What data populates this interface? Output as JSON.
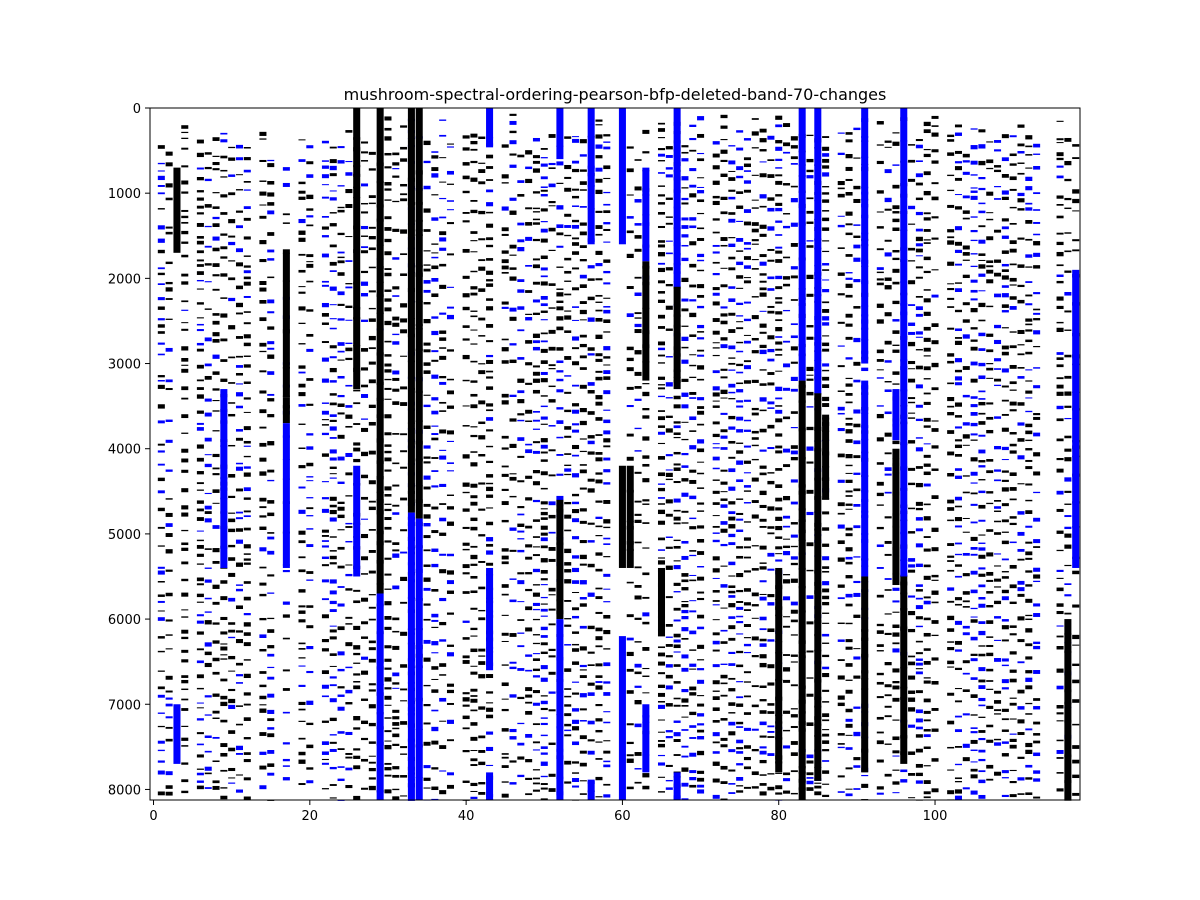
{
  "chart_data": {
    "type": "heatmap",
    "title": "mushroom-spectral-ordering-pearson-bfp-deleted-band-70-changes",
    "xlabel": "",
    "ylabel": "",
    "x_range": [
      0,
      119
    ],
    "y_range": [
      0,
      8124
    ],
    "y_inverted": true,
    "x_ticks": [
      0,
      20,
      40,
      60,
      80,
      100
    ],
    "y_ticks": [
      0,
      1000,
      2000,
      3000,
      4000,
      5000,
      6000,
      7000,
      8000
    ],
    "x_tick_labels": [
      "0",
      "20",
      "40",
      "60",
      "80",
      "100"
    ],
    "y_tick_labels": [
      "0",
      "1000",
      "2000",
      "3000",
      "4000",
      "5000",
      "6000",
      "7000",
      "8000"
    ],
    "grid": false,
    "legend": "none",
    "colors": {
      "background": "#ffffff",
      "one": "#000000",
      "changed": "#0000ff"
    },
    "solid_segments": [
      {
        "col": 33,
        "y0": 0,
        "y1": 4750,
        "value": "one"
      },
      {
        "col": 33,
        "y0": 4750,
        "y1": 8124,
        "value": "changed"
      },
      {
        "col": 34,
        "y0": 0,
        "y1": 4820,
        "value": "one"
      },
      {
        "col": 34,
        "y0": 4820,
        "y1": 8124,
        "value": "changed"
      },
      {
        "col": 29,
        "y0": 0,
        "y1": 5700,
        "value": "one"
      },
      {
        "col": 29,
        "y0": 5700,
        "y1": 8124,
        "value": "changed"
      },
      {
        "col": 26,
        "y0": 0,
        "y1": 3300,
        "value": "one"
      },
      {
        "col": 26,
        "y0": 4200,
        "y1": 5500,
        "value": "changed"
      },
      {
        "col": 83,
        "y0": 0,
        "y1": 3200,
        "value": "changed"
      },
      {
        "col": 83,
        "y0": 3200,
        "y1": 8124,
        "value": "one"
      },
      {
        "col": 85,
        "y0": 0,
        "y1": 3350,
        "value": "changed"
      },
      {
        "col": 85,
        "y0": 3350,
        "y1": 7900,
        "value": "one"
      },
      {
        "col": 43,
        "y0": 0,
        "y1": 450,
        "value": "changed"
      },
      {
        "col": 43,
        "y0": 5400,
        "y1": 6600,
        "value": "changed"
      },
      {
        "col": 43,
        "y0": 7800,
        "y1": 8124,
        "value": "changed"
      },
      {
        "col": 52,
        "y0": 0,
        "y1": 600,
        "value": "changed"
      },
      {
        "col": 52,
        "y0": 4600,
        "y1": 6000,
        "value": "one"
      },
      {
        "col": 52,
        "y0": 6000,
        "y1": 8124,
        "value": "changed"
      },
      {
        "col": 56,
        "y0": 0,
        "y1": 1600,
        "value": "changed"
      },
      {
        "col": 56,
        "y0": 7900,
        "y1": 8124,
        "value": "changed"
      },
      {
        "col": 60,
        "y0": 0,
        "y1": 1600,
        "value": "changed"
      },
      {
        "col": 60,
        "y0": 4200,
        "y1": 5400,
        "value": "one"
      },
      {
        "col": 60,
        "y0": 6200,
        "y1": 8124,
        "value": "changed"
      },
      {
        "col": 63,
        "y0": 700,
        "y1": 1800,
        "value": "changed"
      },
      {
        "col": 63,
        "y0": 1800,
        "y1": 3200,
        "value": "one"
      },
      {
        "col": 63,
        "y0": 7000,
        "y1": 7800,
        "value": "changed"
      },
      {
        "col": 67,
        "y0": 0,
        "y1": 2100,
        "value": "changed"
      },
      {
        "col": 67,
        "y0": 2100,
        "y1": 3300,
        "value": "one"
      },
      {
        "col": 67,
        "y0": 7800,
        "y1": 8124,
        "value": "changed"
      },
      {
        "col": 91,
        "y0": 0,
        "y1": 3000,
        "value": "changed"
      },
      {
        "col": 91,
        "y0": 3200,
        "y1": 5500,
        "value": "changed"
      },
      {
        "col": 91,
        "y0": 5500,
        "y1": 7800,
        "value": "one"
      },
      {
        "col": 95,
        "y0": 3300,
        "y1": 3900,
        "value": "changed"
      },
      {
        "col": 95,
        "y0": 4000,
        "y1": 5600,
        "value": "one"
      },
      {
        "col": 96,
        "y0": 0,
        "y1": 5500,
        "value": "changed"
      },
      {
        "col": 96,
        "y0": 5500,
        "y1": 7700,
        "value": "one"
      },
      {
        "col": 117,
        "y0": 6000,
        "y1": 8124,
        "value": "one"
      },
      {
        "col": 118,
        "y0": 1900,
        "y1": 5400,
        "value": "changed"
      },
      {
        "col": 17,
        "y0": 1700,
        "y1": 3400,
        "value": "one"
      },
      {
        "col": 17,
        "y0": 3400,
        "y1": 3700,
        "value": "one"
      },
      {
        "col": 17,
        "y0": 3700,
        "y1": 5400,
        "value": "changed"
      },
      {
        "col": 9,
        "y0": 3300,
        "y1": 5400,
        "value": "changed"
      },
      {
        "col": 3,
        "y0": 700,
        "y1": 1700,
        "value": "one"
      },
      {
        "col": 3,
        "y0": 7000,
        "y1": 7700,
        "value": "changed"
      },
      {
        "col": 61,
        "y0": 4200,
        "y1": 5400,
        "value": "one"
      },
      {
        "col": 65,
        "y0": 5400,
        "y1": 6200,
        "value": "one"
      },
      {
        "col": 80,
        "y0": 5400,
        "y1": 7800,
        "value": "one"
      },
      {
        "col": 86,
        "y0": 3600,
        "y1": 4600,
        "value": "one"
      }
    ]
  }
}
